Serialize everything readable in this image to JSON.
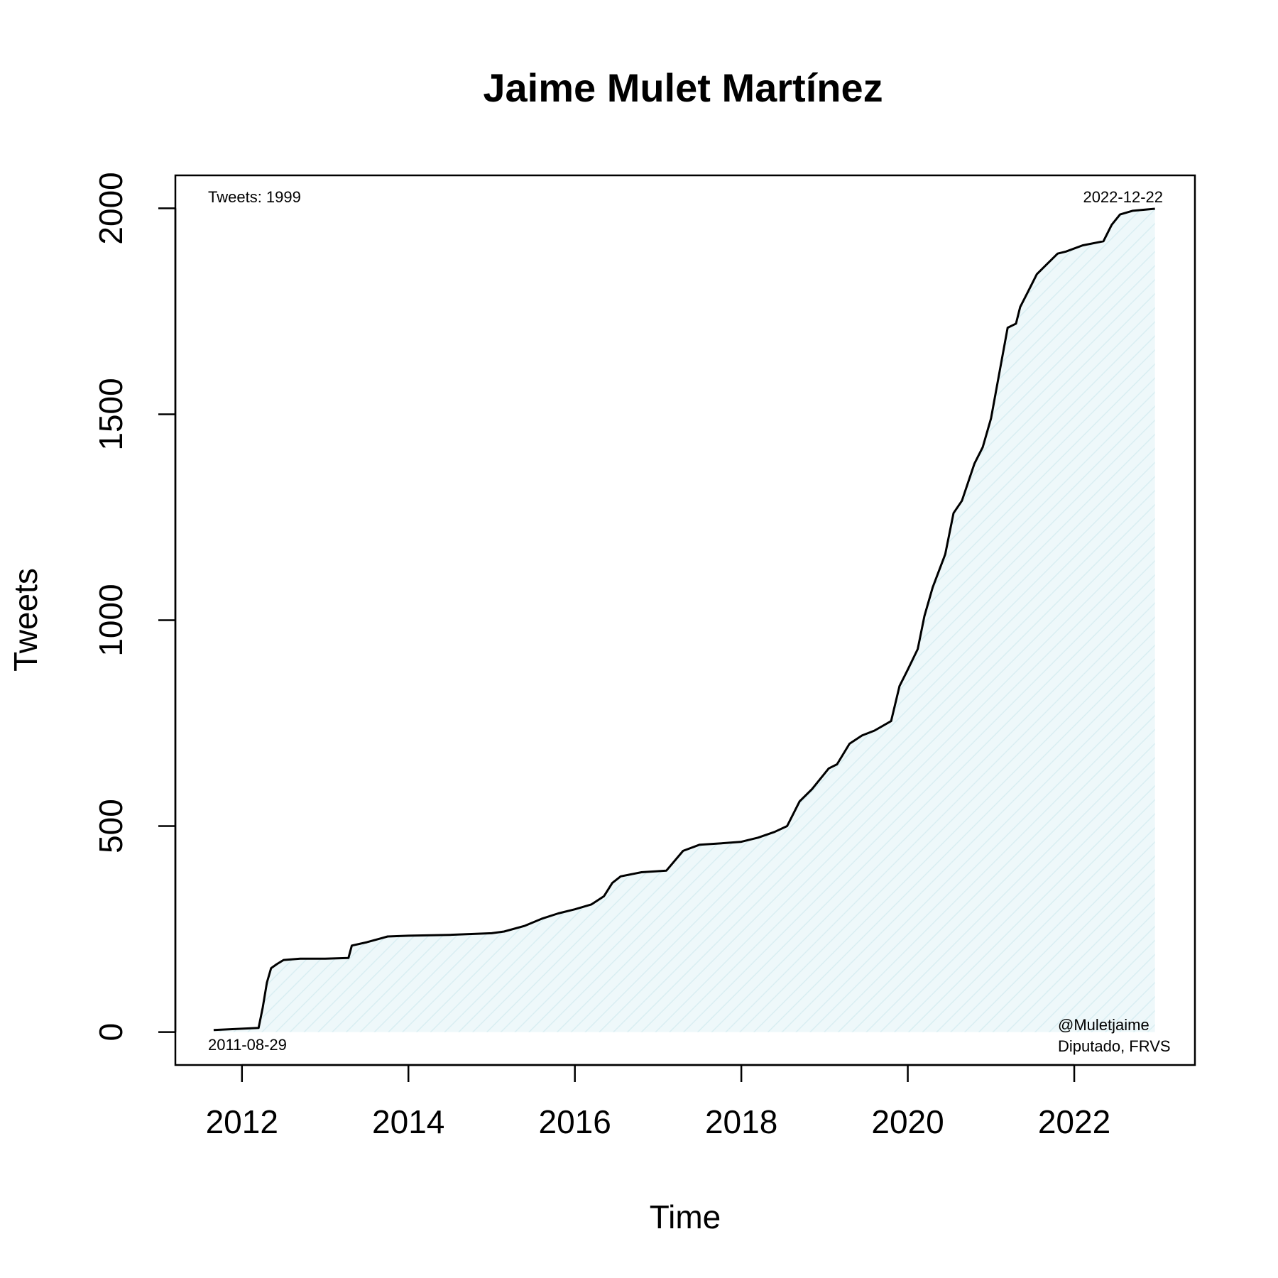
{
  "chart_data": {
    "type": "area",
    "title": "Jaime Mulet Martínez",
    "xlabel": "Time",
    "ylabel": "Tweets",
    "xlim": [
      2011.2,
      2023.45
    ],
    "ylim": [
      -80,
      2080
    ],
    "x_ticks": [
      2012,
      2014,
      2016,
      2018,
      2020,
      2022
    ],
    "y_ticks": [
      0,
      500,
      1000,
      1500,
      2000
    ],
    "fill_color": "#eaf6f8",
    "line_color": "#000000",
    "annotations": {
      "tweets_total": "Tweets: 1999",
      "start_date": "2011-08-29",
      "end_date": "2022-12-22",
      "handle": "@Muletjaime",
      "affiliation": "Diputado, FRVS"
    },
    "x": [
      2011.66,
      2012.2,
      2012.25,
      2012.3,
      2012.35,
      2012.42,
      2012.5,
      2012.7,
      2013.0,
      2013.28,
      2013.32,
      2013.5,
      2013.68,
      2013.75,
      2014.0,
      2014.5,
      2015.0,
      2015.15,
      2015.4,
      2015.6,
      2015.8,
      2016.0,
      2016.2,
      2016.35,
      2016.45,
      2016.55,
      2016.8,
      2017.1,
      2017.3,
      2017.5,
      2017.75,
      2018.0,
      2018.2,
      2018.4,
      2018.55,
      2018.7,
      2018.85,
      2019.05,
      2019.15,
      2019.3,
      2019.45,
      2019.6,
      2019.8,
      2019.9,
      2020.0,
      2020.12,
      2020.2,
      2020.3,
      2020.45,
      2020.55,
      2020.65,
      2020.8,
      2020.9,
      2021.0,
      2021.1,
      2021.2,
      2021.3,
      2021.35,
      2021.45,
      2021.55,
      2021.65,
      2021.8,
      2021.9,
      2022.1,
      2022.35,
      2022.45,
      2022.55,
      2022.7,
      2022.97
    ],
    "values": [
      5,
      10,
      60,
      120,
      155,
      165,
      175,
      178,
      178,
      180,
      210,
      218,
      228,
      232,
      234,
      236,
      240,
      244,
      258,
      275,
      288,
      298,
      310,
      330,
      362,
      378,
      388,
      392,
      440,
      455,
      458,
      462,
      472,
      486,
      500,
      560,
      590,
      640,
      650,
      700,
      720,
      732,
      755,
      840,
      880,
      930,
      1010,
      1080,
      1160,
      1260,
      1290,
      1380,
      1420,
      1490,
      1600,
      1710,
      1720,
      1760,
      1800,
      1840,
      1860,
      1890,
      1895,
      1910,
      1920,
      1960,
      1985,
      1994,
      1999
    ]
  }
}
